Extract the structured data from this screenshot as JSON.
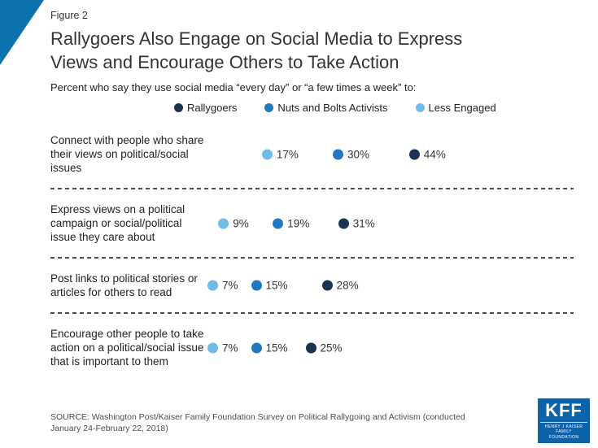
{
  "figure_label": "Figure 2",
  "title": "Rallygoers Also Engage on Social Media to Express Views and Encourage Others to Take Action",
  "subtitle": "Percent who say they use social media “every day” or “a few times a week” to:",
  "colors": {
    "corner_triangle": "#0b72ae",
    "logo_bg": "#0e62a8",
    "separator": "#4d4d4d"
  },
  "chart_data": {
    "type": "scatter",
    "unit": "%",
    "title": "Rallygoers Also Engage on Social Media to Express Views and Encourage Others to Take Action",
    "legend_position": "top",
    "series": [
      {
        "id": "rallygoers",
        "name": "Rallygoers",
        "color": "#1a3352"
      },
      {
        "id": "nuts_and_bolts",
        "name": "Nuts and Bolts Activists",
        "color": "#1f78c0"
      },
      {
        "id": "less_engaged",
        "name": "Less Engaged",
        "color": "#70bce8"
      }
    ],
    "display_order": [
      "less_engaged",
      "nuts_and_bolts",
      "rallygoers"
    ],
    "rows": [
      {
        "label": "Connect with people who share their views on political/social issues",
        "values": {
          "less_engaged": 17,
          "nuts_and_bolts": 30,
          "rallygoers": 44
        }
      },
      {
        "label": "Express views on a political campaign or social/political issue they care about",
        "values": {
          "less_engaged": 9,
          "nuts_and_bolts": 19,
          "rallygoers": 31
        }
      },
      {
        "label": "Post links to political stories or articles for others to read",
        "values": {
          "less_engaged": 7,
          "nuts_and_bolts": 15,
          "rallygoers": 28
        }
      },
      {
        "label": "Encourage other people to take action on a political/social issue that is important to them",
        "values": {
          "less_engaged": 7,
          "nuts_and_bolts": 15,
          "rallygoers": 25
        }
      }
    ]
  },
  "source": "SOURCE: Washington Post/Kaiser Family Foundation Survey on Political Rallygoing and Activism (conducted January 24-February 22, 2018)",
  "logo": {
    "text": "KFF",
    "subtext": "HENRY J KAISER FAMILY FOUNDATION"
  }
}
